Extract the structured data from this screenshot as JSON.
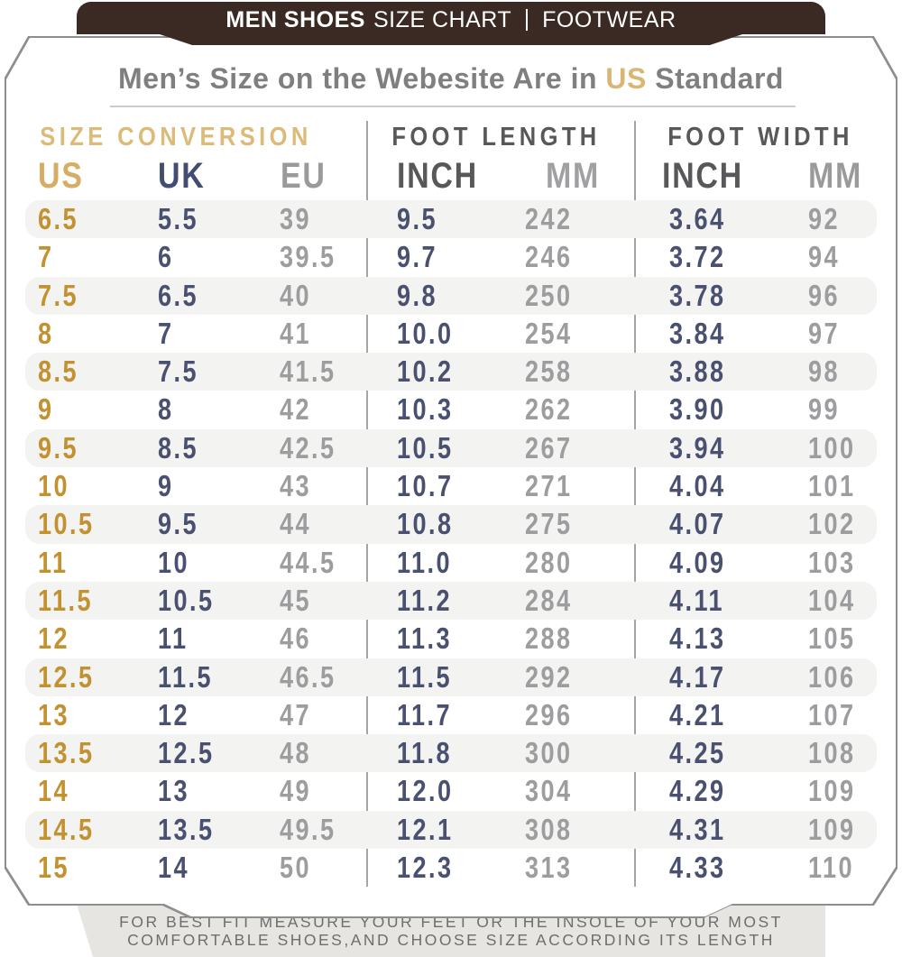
{
  "banner": {
    "brand_bold": "MEN SHOES",
    "brand_rest": "SIZE CHART",
    "right": "FOOTWEAR"
  },
  "heading": {
    "prefix": "Men’s Size on the Webesite Are in ",
    "highlight": "US",
    "suffix": " Standard"
  },
  "sections": {
    "conversion": "SIZE CONVERSION",
    "length": "FOOT LENGTH",
    "width": "FOOT WIDTH"
  },
  "columns": {
    "us": "US",
    "uk": "UK",
    "eu": "EU",
    "len_inch": "INCH",
    "len_mm": "MM",
    "wid_inch": "INCH",
    "wid_mm": "MM"
  },
  "rows": [
    {
      "us": "6.5",
      "uk": "5.5",
      "eu": "39",
      "len_inch": "9.5",
      "len_mm": "242",
      "wid_inch": "3.64",
      "wid_mm": "92"
    },
    {
      "us": "7",
      "uk": "6",
      "eu": "39.5",
      "len_inch": "9.7",
      "len_mm": "246",
      "wid_inch": "3.72",
      "wid_mm": "94"
    },
    {
      "us": "7.5",
      "uk": "6.5",
      "eu": "40",
      "len_inch": "9.8",
      "len_mm": "250",
      "wid_inch": "3.78",
      "wid_mm": "96"
    },
    {
      "us": "8",
      "uk": "7",
      "eu": "41",
      "len_inch": "10.0",
      "len_mm": "254",
      "wid_inch": "3.84",
      "wid_mm": "97"
    },
    {
      "us": "8.5",
      "uk": "7.5",
      "eu": "41.5",
      "len_inch": "10.2",
      "len_mm": "258",
      "wid_inch": "3.88",
      "wid_mm": "98"
    },
    {
      "us": "9",
      "uk": "8",
      "eu": "42",
      "len_inch": "10.3",
      "len_mm": "262",
      "wid_inch": "3.90",
      "wid_mm": "99"
    },
    {
      "us": "9.5",
      "uk": "8.5",
      "eu": "42.5",
      "len_inch": "10.5",
      "len_mm": "267",
      "wid_inch": "3.94",
      "wid_mm": "100"
    },
    {
      "us": "10",
      "uk": "9",
      "eu": "43",
      "len_inch": "10.7",
      "len_mm": "271",
      "wid_inch": "4.04",
      "wid_mm": "101"
    },
    {
      "us": "10.5",
      "uk": "9.5",
      "eu": "44",
      "len_inch": "10.8",
      "len_mm": "275",
      "wid_inch": "4.07",
      "wid_mm": "102"
    },
    {
      "us": "11",
      "uk": "10",
      "eu": "44.5",
      "len_inch": "11.0",
      "len_mm": "280",
      "wid_inch": "4.09",
      "wid_mm": "103"
    },
    {
      "us": "11.5",
      "uk": "10.5",
      "eu": "45",
      "len_inch": "11.2",
      "len_mm": "284",
      "wid_inch": "4.11",
      "wid_mm": "104"
    },
    {
      "us": "12",
      "uk": "11",
      "eu": "46",
      "len_inch": "11.3",
      "len_mm": "288",
      "wid_inch": "4.13",
      "wid_mm": "105"
    },
    {
      "us": "12.5",
      "uk": "11.5",
      "eu": "46.5",
      "len_inch": "11.5",
      "len_mm": "292",
      "wid_inch": "4.17",
      "wid_mm": "106"
    },
    {
      "us": "13",
      "uk": "12",
      "eu": "47",
      "len_inch": "11.7",
      "len_mm": "296",
      "wid_inch": "4.21",
      "wid_mm": "107"
    },
    {
      "us": "13.5",
      "uk": "12.5",
      "eu": "48",
      "len_inch": "11.8",
      "len_mm": "300",
      "wid_inch": "4.25",
      "wid_mm": "108"
    },
    {
      "us": "14",
      "uk": "13",
      "eu": "49",
      "len_inch": "12.0",
      "len_mm": "304",
      "wid_inch": "4.29",
      "wid_mm": "109"
    },
    {
      "us": "14.5",
      "uk": "13.5",
      "eu": "49.5",
      "len_inch": "12.1",
      "len_mm": "308",
      "wid_inch": "4.31",
      "wid_mm": "109"
    },
    {
      "us": "15",
      "uk": "14",
      "eu": "50",
      "len_inch": "12.3",
      "len_mm": "313",
      "wid_inch": "4.33",
      "wid_mm": "110"
    }
  ],
  "footer": {
    "line1": "FOR BEST FIT MEASURE YOUR FEET OR THE INSOLE OF YOUR MOST",
    "line2": "COMFORTABLE SHOES,AND CHOOSE SIZE ACCORDING ITS LENGTH"
  },
  "colors": {
    "banner_bg": "#3a2a23",
    "gold_data": "#c3912f",
    "gold_header": "#d5ad64",
    "tan_title": "#dcba78",
    "navy": "#4a5170",
    "gray_data": "#9d9da0",
    "dark_gray_header": "#58585a",
    "title_gray": "#7f7f7f",
    "stripe": "#f3f3f2",
    "footer_bg": "#e6e5e2",
    "footer_text": "#6e6e6e",
    "card_border": "#8e8e8e"
  }
}
